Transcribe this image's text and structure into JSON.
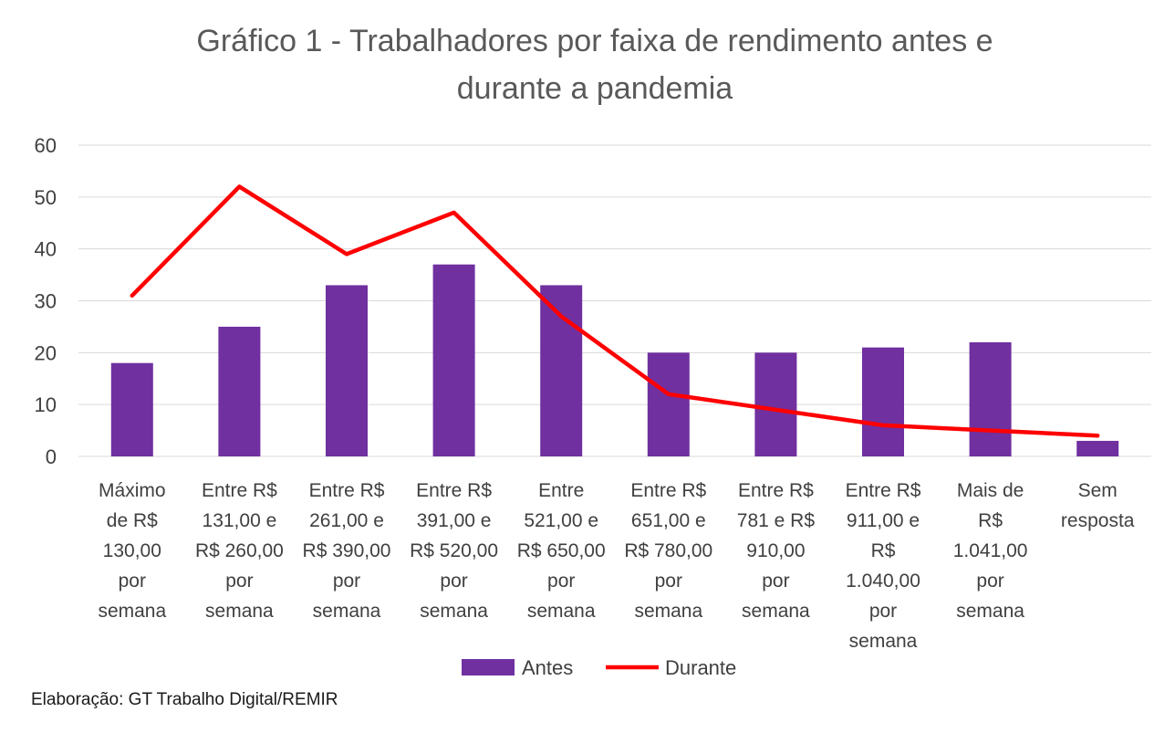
{
  "chart_data": {
    "type": "bar",
    "title_lines": [
      "Gráfico 1 - Trabalhadores por faixa de rendimento antes e",
      "durante a pandemia"
    ],
    "categories": [
      [
        "Máximo",
        "de R$",
        "130,00",
        "por",
        "semana"
      ],
      [
        "Entre R$",
        "131,00 e",
        "R$ 260,00",
        "por",
        "semana"
      ],
      [
        "Entre R$",
        "261,00 e",
        "R$ 390,00",
        "por",
        "semana"
      ],
      [
        "Entre R$",
        "391,00 e",
        "R$ 520,00",
        "por",
        "semana"
      ],
      [
        "Entre",
        "521,00 e",
        "R$ 650,00",
        "por",
        "semana"
      ],
      [
        "Entre R$",
        "651,00 e",
        "R$ 780,00",
        "por",
        "semana"
      ],
      [
        "Entre R$",
        "781 e R$",
        "910,00",
        "por",
        "semana"
      ],
      [
        "Entre R$",
        "911,00 e",
        "R$",
        "1.040,00",
        "por",
        "semana"
      ],
      [
        "Mais de",
        "R$",
        "1.041,00",
        "por",
        "semana"
      ],
      [
        "Sem",
        "resposta"
      ]
    ],
    "series": [
      {
        "name": "Antes",
        "type": "bar",
        "color": "#7030a0",
        "values": [
          18,
          25,
          33,
          37,
          33,
          20,
          20,
          21,
          22,
          3
        ]
      },
      {
        "name": "Durante",
        "type": "line",
        "color": "#ff0000",
        "values": [
          31,
          52,
          39,
          47,
          27,
          12,
          9,
          6,
          5,
          4
        ]
      }
    ],
    "ylim": [
      0,
      60
    ],
    "yticks": [
      0,
      10,
      20,
      30,
      40,
      50,
      60
    ],
    "grid": true,
    "legend_position": "bottom"
  },
  "source_note": "Elaboração: GT Trabalho Digital/REMIR"
}
